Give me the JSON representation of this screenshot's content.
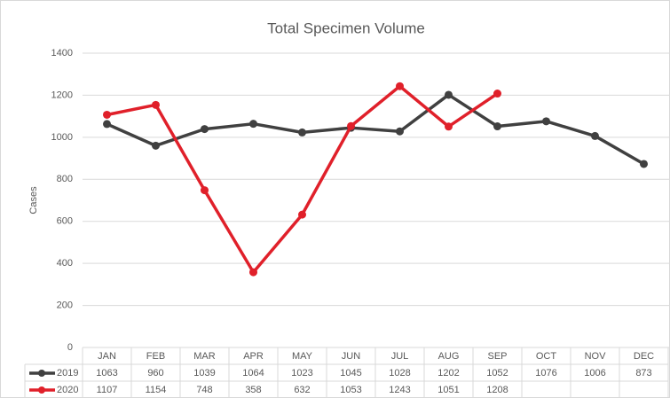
{
  "chart_data": {
    "type": "line",
    "title": "Total Specimen Volume",
    "y_label": "Cases",
    "categories": [
      "JAN",
      "FEB",
      "MAR",
      "APR",
      "MAY",
      "JUN",
      "JUL",
      "AUG",
      "SEP",
      "OCT",
      "NOV",
      "DEC"
    ],
    "series": [
      {
        "name": "2019",
        "color": "#404040",
        "values": [
          1063,
          960,
          1039,
          1064,
          1023,
          1045,
          1028,
          1202,
          1052,
          1076,
          1006,
          873
        ]
      },
      {
        "name": "2020",
        "color": "#e0202a",
        "values": [
          1107,
          1154,
          748,
          358,
          632,
          1053,
          1243,
          1051,
          1208,
          null,
          null,
          null
        ]
      }
    ],
    "ylim": [
      0,
      1400
    ],
    "yticks": [
      0,
      200,
      400,
      600,
      800,
      1000,
      1200,
      1400
    ],
    "grid": true
  }
}
